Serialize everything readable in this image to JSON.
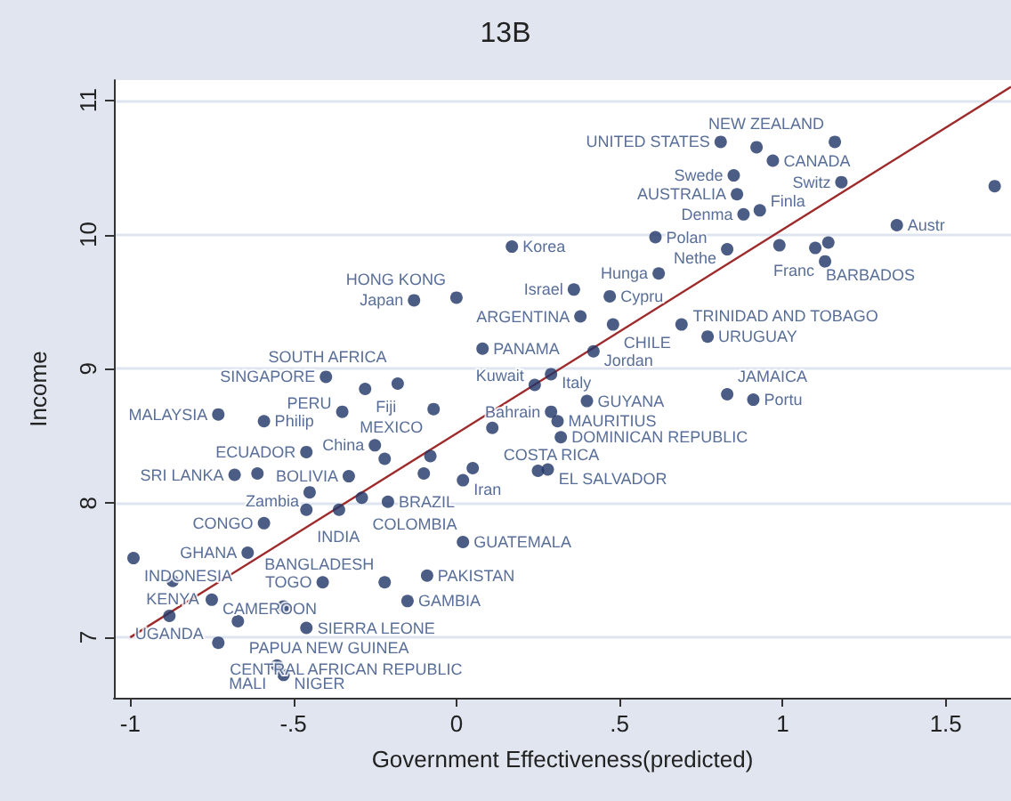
{
  "chart_data": {
    "type": "scatter",
    "title": "13B",
    "xlabel": "Government Effectiveness(predicted)",
    "ylabel": "Income",
    "xlim": [
      -1.05,
      1.7
    ],
    "ylim": [
      6.55,
      11.15
    ],
    "xticks": [
      -1,
      {
        "value": -0.5,
        "label": "-.5"
      },
      0,
      {
        "value": 0.5,
        "label": ".5"
      },
      1,
      1.5
    ],
    "yticks": [
      7,
      8,
      9,
      10,
      11
    ],
    "grid": "y",
    "series": [
      {
        "type": "scatter",
        "marker": "circle",
        "color": "#1f3466",
        "x": [
          0.81,
          0.92,
          1.16,
          0.97,
          0.85,
          1.18,
          0.86,
          0.93,
          0.88,
          1.65,
          1.35,
          0.61,
          0.83,
          0.99,
          1.1,
          1.14,
          1.13,
          0.17,
          0.62,
          0.36,
          0.47,
          0.0,
          -0.13,
          0.38,
          0.48,
          0.69,
          0.77,
          0.08,
          0.42,
          -0.4,
          0.29,
          0.24,
          -0.18,
          -0.28,
          -0.73,
          -0.59,
          -0.35,
          -0.07,
          0.4,
          0.83,
          0.91,
          0.29,
          0.31,
          0.11,
          0.32,
          0.28,
          0.25,
          -0.46,
          -0.25,
          -0.22,
          -0.08,
          -0.68,
          -0.61,
          -0.33,
          -0.1,
          0.02,
          0.05,
          -0.45,
          -0.29,
          -0.21,
          -0.46,
          -0.36,
          -0.59,
          0.02,
          -0.64,
          -0.99,
          -0.87,
          -0.41,
          -0.22,
          -0.09,
          -0.15,
          -0.75,
          -0.88,
          -0.67,
          -0.53,
          -0.46,
          -0.73,
          -0.55,
          -0.53
        ],
        "values": [
          10.69,
          10.65,
          10.69,
          10.55,
          10.44,
          10.39,
          10.3,
          10.18,
          10.15,
          10.36,
          10.07,
          9.98,
          9.89,
          9.92,
          9.9,
          9.94,
          9.8,
          9.91,
          9.71,
          9.59,
          9.54,
          9.53,
          9.51,
          9.39,
          9.33,
          9.33,
          9.24,
          9.15,
          9.13,
          8.94,
          8.96,
          8.88,
          8.89,
          8.85,
          8.66,
          8.61,
          8.68,
          8.7,
          8.76,
          8.81,
          8.77,
          8.68,
          8.61,
          8.56,
          8.49,
          8.25,
          8.24,
          8.38,
          8.43,
          8.33,
          8.35,
          8.21,
          8.22,
          8.2,
          8.22,
          8.17,
          8.26,
          8.08,
          8.04,
          8.01,
          7.95,
          7.95,
          7.85,
          7.71,
          7.63,
          7.59,
          7.42,
          7.41,
          7.41,
          7.46,
          7.27,
          7.28,
          7.16,
          7.12,
          7.23,
          7.07,
          6.96,
          6.79,
          6.72
        ],
        "value_labels": [
          "UNITED STATES",
          null,
          "NEW ZEALAND",
          "CANADA",
          "Swede",
          "Switz",
          "AUSTRALIA",
          "Finla",
          "Denma",
          null,
          "Austr",
          "Polan",
          "Nethe",
          null,
          "BARBADOS",
          null,
          "Franc",
          "Korea",
          "Hunga",
          "Israel",
          "Cypru",
          "HONG KONG",
          "Japan",
          "ARGENTINA",
          "CHILE",
          "TRINIDAD AND TOBAGO",
          "URUGUAY",
          "PANAMA",
          "Jordan",
          "SINGAPORE",
          "Italy",
          "Kuwait",
          "SOUTH AFRICA",
          "Fiji",
          "MALAYSIA",
          "Philip",
          "PERU",
          "MEXICO",
          "GUYANA",
          "JAMAICA",
          "Portu",
          "Bahrain",
          "MAURITIUS",
          "COSTA RICA",
          "DOMINICAN REPUBLIC",
          "EL SALVADOR",
          null,
          "ECUADOR",
          "China",
          null,
          null,
          "SRI LANKA",
          null,
          "BOLIVIA",
          null,
          "Iran",
          null,
          "Zambia",
          "COLOMBIA",
          "BRAZIL",
          "INDIA",
          null,
          "CONGO",
          "GUATEMALA",
          "GHANA",
          "INDONESIA",
          "KENYA",
          "TOGO",
          "BANGLADESH",
          "PAKISTAN",
          "GAMBIA",
          "CAMEROON",
          "UGANDA",
          "PAPUA NEW GUINEA",
          null,
          "SIERRA LEONE",
          "CENTRAL AFRICAN REPUBLIC",
          "MALI",
          "NIGER"
        ]
      },
      {
        "type": "line",
        "marker": "none",
        "line_style": "solid",
        "color": "#9e2a2b",
        "x": [
          -1,
          1.7
        ],
        "values": [
          7.0,
          11.1
        ]
      }
    ]
  }
}
